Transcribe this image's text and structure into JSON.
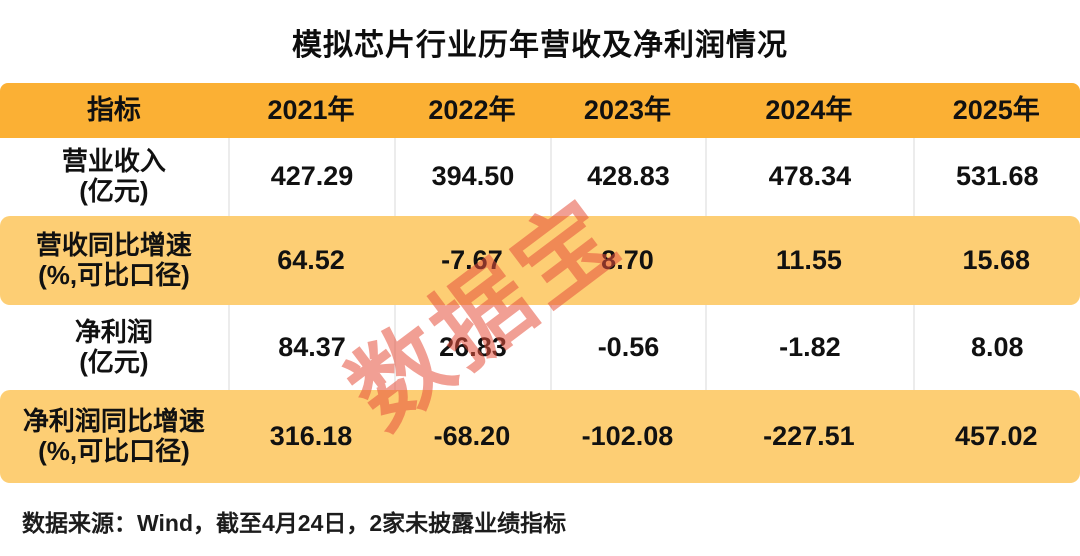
{
  "title": "模拟芯片行业历年营收及净利润情况",
  "watermark": "数据宝",
  "table": {
    "header": {
      "metric": "指标",
      "years": [
        "2021年",
        "2022年",
        "2023年",
        "2024年",
        "2025年"
      ]
    },
    "rows": [
      {
        "label": "营业收入",
        "unit": "(亿元)",
        "values": [
          "427.29",
          "394.50",
          "428.83",
          "478.34",
          "531.68"
        ]
      },
      {
        "label": "营收同比增速",
        "unit": "(%,可比口径)",
        "values": [
          "64.52",
          "-7.67",
          "8.70",
          "11.55",
          "15.68"
        ]
      },
      {
        "label": "净利润",
        "unit": "(亿元)",
        "values": [
          "84.37",
          "26.83",
          "-0.56",
          "-1.82",
          "8.08"
        ]
      },
      {
        "label": "净利润同比增速",
        "unit": "(%,可比口径)",
        "values": [
          "316.18",
          "-68.20",
          "-102.08",
          "-227.51",
          "457.02"
        ]
      }
    ]
  },
  "footer": "数据来源：Wind，截至4月24日，2家未披露业绩指标",
  "colors": {
    "header_bg": "#FBB034",
    "highlight_row_bg": "#FDCE74",
    "watermark_color": "#E25042",
    "text": "#111111"
  }
}
